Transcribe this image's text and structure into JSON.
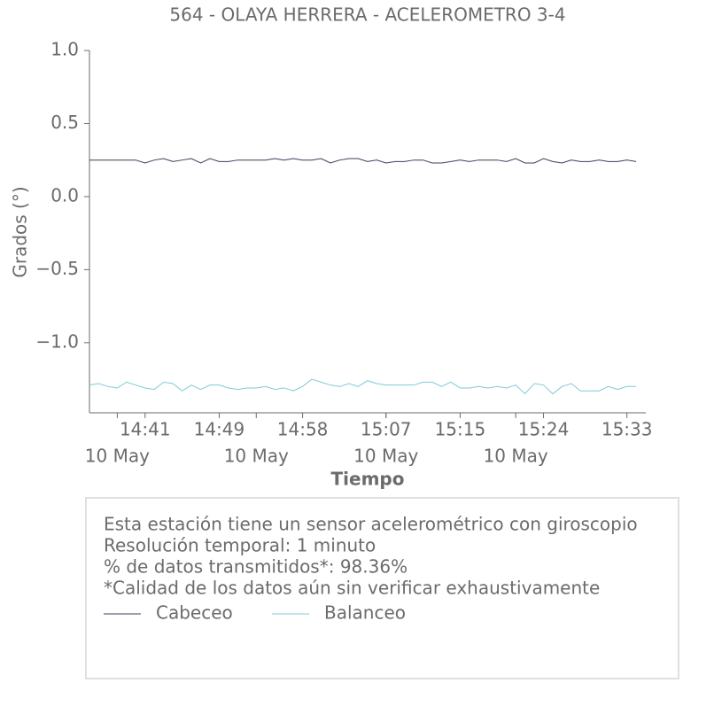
{
  "chart_data": {
    "type": "line",
    "title": "564 - OLAYA HERRERA - ACELEROMETRO 3-4",
    "ylabel": "Grados (°)",
    "xlabel": "Tiempo",
    "x": [
      "14:35",
      "14:36",
      "14:37",
      "14:38",
      "14:39",
      "14:40",
      "14:41",
      "14:42",
      "14:43",
      "14:44",
      "14:45",
      "14:46",
      "14:47",
      "14:48",
      "14:49",
      "14:50",
      "14:51",
      "14:52",
      "14:53",
      "14:54",
      "14:55",
      "14:56",
      "14:57",
      "14:58",
      "14:59",
      "15:00",
      "15:01",
      "15:02",
      "15:03",
      "15:04",
      "15:05",
      "15:06",
      "15:07",
      "15:08",
      "15:09",
      "15:10",
      "15:11",
      "15:12",
      "15:13",
      "15:14",
      "15:15",
      "15:16",
      "15:17",
      "15:18",
      "15:19",
      "15:20",
      "15:21",
      "15:22",
      "15:23",
      "15:24",
      "15:25",
      "15:26",
      "15:27",
      "15:28",
      "15:29",
      "15:30",
      "15:31",
      "15:32",
      "15:33",
      "15:34"
    ],
    "series": [
      {
        "name": "Cabeceo",
        "color": "#3d3d5c",
        "values": [
          0.25,
          0.25,
          0.25,
          0.25,
          0.25,
          0.25,
          0.23,
          0.25,
          0.26,
          0.24,
          0.25,
          0.26,
          0.23,
          0.26,
          0.24,
          0.24,
          0.25,
          0.25,
          0.25,
          0.25,
          0.26,
          0.25,
          0.26,
          0.25,
          0.25,
          0.26,
          0.23,
          0.25,
          0.26,
          0.26,
          0.24,
          0.25,
          0.23,
          0.24,
          0.24,
          0.25,
          0.25,
          0.23,
          0.23,
          0.24,
          0.25,
          0.24,
          0.25,
          0.25,
          0.25,
          0.24,
          0.26,
          0.23,
          0.23,
          0.26,
          0.24,
          0.23,
          0.25,
          0.24,
          0.24,
          0.25,
          0.24,
          0.24,
          0.25,
          0.24
        ]
      },
      {
        "name": "Balanceo",
        "color": "#7ecbd6",
        "values": [
          -1.29,
          -1.28,
          -1.3,
          -1.31,
          -1.27,
          -1.29,
          -1.31,
          -1.32,
          -1.27,
          -1.28,
          -1.33,
          -1.29,
          -1.32,
          -1.29,
          -1.29,
          -1.31,
          -1.32,
          -1.31,
          -1.31,
          -1.3,
          -1.32,
          -1.31,
          -1.33,
          -1.3,
          -1.25,
          -1.27,
          -1.29,
          -1.3,
          -1.28,
          -1.3,
          -1.26,
          -1.28,
          -1.29,
          -1.29,
          -1.29,
          -1.29,
          -1.27,
          -1.27,
          -1.3,
          -1.27,
          -1.31,
          -1.31,
          -1.3,
          -1.31,
          -1.3,
          -1.31,
          -1.29,
          -1.35,
          -1.28,
          -1.29,
          -1.35,
          -1.3,
          -1.28,
          -1.33,
          -1.33,
          -1.33,
          -1.3,
          -1.32,
          -1.3,
          -1.3
        ]
      }
    ],
    "ylim": [
      -1.48,
      1.0
    ],
    "yticks": [
      {
        "value": -1.0,
        "label": "−1.0"
      },
      {
        "value": -0.5,
        "label": "−0.5"
      },
      {
        "value": 0.0,
        "label": "0.0"
      },
      0.5,
      {
        "value": 1.0,
        "label": "1.0"
      }
    ],
    "xticks": [
      "14:41",
      "14:49",
      "14:58",
      "15:07",
      "15:15",
      "15:24",
      "15:33"
    ],
    "xticks_date": [
      {
        "value": "14:38",
        "label": "10 May"
      },
      {
        "value": "14:53",
        "label": "10 May"
      },
      {
        "value": "15:07",
        "label": "10 May"
      },
      {
        "value": "15:21",
        "label": "10 May"
      }
    ],
    "info": [
      "Esta estación tiene un sensor acelerométrico con giroscopio",
      "Resolución temporal: 1 minuto",
      "% de datos transmitidos*: 98.36%",
      "*Calidad de los datos aún sin verificar exhaustivamente"
    ]
  }
}
